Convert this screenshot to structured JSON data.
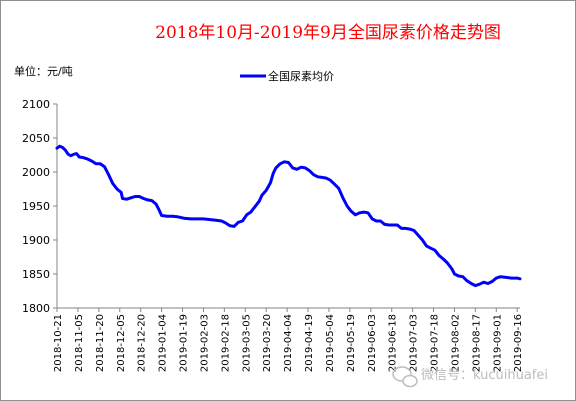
{
  "chart_data": {
    "type": "line",
    "title": "2018年10月-2019年9月全国尿素价格走势图",
    "unit_label": "单位：元/吨",
    "ylim": [
      1800,
      2100
    ],
    "yticks": [
      1800,
      1850,
      1900,
      1950,
      2000,
      2050,
      2100
    ],
    "grid": false,
    "legend_position": "top-center",
    "x_tick_labels": [
      "2018-10-21",
      "2018-11-05",
      "2018-11-20",
      "2018-12-05",
      "2018-12-20",
      "2019-01-04",
      "2019-01-19",
      "2019-02-03",
      "2019-02-18",
      "2019-03-05",
      "2019-03-20",
      "2019-04-04",
      "2019-04-19",
      "2019-05-04",
      "2019-05-19",
      "2019-06-03",
      "2019-06-18",
      "2019-07-03",
      "2019-07-18",
      "2019-08-02",
      "2019-08-17",
      "2019-09-01",
      "2019-09-16"
    ],
    "x_range": [
      "2018-10-21",
      "2019-09-18"
    ],
    "series": [
      {
        "name": "全国尿素均价",
        "color": "#0000ff",
        "points": [
          [
            "2018-10-21",
            2035
          ],
          [
            "2018-10-23",
            2038
          ],
          [
            "2018-10-25",
            2036
          ],
          [
            "2018-10-27",
            2032
          ],
          [
            "2018-10-29",
            2026
          ],
          [
            "2018-10-31",
            2024
          ],
          [
            "2018-11-02",
            2026
          ],
          [
            "2018-11-04",
            2027
          ],
          [
            "2018-11-06",
            2022
          ],
          [
            "2018-11-09",
            2021
          ],
          [
            "2018-11-12",
            2019
          ],
          [
            "2018-11-15",
            2016
          ],
          [
            "2018-11-18",
            2012
          ],
          [
            "2018-11-21",
            2012
          ],
          [
            "2018-11-24",
            2008
          ],
          [
            "2018-11-27",
            1996
          ],
          [
            "2018-11-30",
            1983
          ],
          [
            "2018-12-03",
            1975
          ],
          [
            "2018-12-06",
            1970
          ],
          [
            "2018-12-07",
            1961
          ],
          [
            "2018-12-10",
            1960
          ],
          [
            "2018-12-13",
            1962
          ],
          [
            "2018-12-16",
            1964
          ],
          [
            "2018-12-19",
            1964
          ],
          [
            "2018-12-22",
            1961
          ],
          [
            "2018-12-25",
            1959
          ],
          [
            "2018-12-28",
            1958
          ],
          [
            "2018-12-31",
            1953
          ],
          [
            "2019-01-02",
            1945
          ],
          [
            "2019-01-04",
            1936
          ],
          [
            "2019-01-08",
            1935
          ],
          [
            "2019-01-12",
            1935
          ],
          [
            "2019-01-16",
            1934
          ],
          [
            "2019-01-20",
            1932
          ],
          [
            "2019-01-25",
            1931
          ],
          [
            "2019-01-30",
            1931
          ],
          [
            "2019-02-03",
            1931
          ],
          [
            "2019-02-08",
            1930
          ],
          [
            "2019-02-12",
            1929
          ],
          [
            "2019-02-16",
            1928
          ],
          [
            "2019-02-19",
            1925
          ],
          [
            "2019-02-22",
            1921
          ],
          [
            "2019-02-25",
            1920
          ],
          [
            "2019-02-28",
            1926
          ],
          [
            "2019-03-03",
            1928
          ],
          [
            "2019-03-06",
            1937
          ],
          [
            "2019-03-09",
            1941
          ],
          [
            "2019-03-12",
            1949
          ],
          [
            "2019-03-15",
            1957
          ],
          [
            "2019-03-17",
            1966
          ],
          [
            "2019-03-20",
            1973
          ],
          [
            "2019-03-23",
            1984
          ],
          [
            "2019-03-25",
            1998
          ],
          [
            "2019-03-27",
            2006
          ],
          [
            "2019-03-30",
            2012
          ],
          [
            "2019-04-02",
            2015
          ],
          [
            "2019-04-05",
            2014
          ],
          [
            "2019-04-08",
            2006
          ],
          [
            "2019-04-11",
            2004
          ],
          [
            "2019-04-14",
            2007
          ],
          [
            "2019-04-17",
            2006
          ],
          [
            "2019-04-20",
            2002
          ],
          [
            "2019-04-23",
            1996
          ],
          [
            "2019-04-26",
            1993
          ],
          [
            "2019-04-29",
            1992
          ],
          [
            "2019-05-02",
            1991
          ],
          [
            "2019-05-05",
            1988
          ],
          [
            "2019-05-08",
            1982
          ],
          [
            "2019-05-11",
            1976
          ],
          [
            "2019-05-14",
            1962
          ],
          [
            "2019-05-17",
            1950
          ],
          [
            "2019-05-20",
            1942
          ],
          [
            "2019-05-23",
            1937
          ],
          [
            "2019-05-26",
            1940
          ],
          [
            "2019-05-29",
            1941
          ],
          [
            "2019-06-01",
            1940
          ],
          [
            "2019-06-04",
            1931
          ],
          [
            "2019-06-07",
            1928
          ],
          [
            "2019-06-10",
            1928
          ],
          [
            "2019-06-13",
            1923
          ],
          [
            "2019-06-16",
            1922
          ],
          [
            "2019-06-19",
            1922
          ],
          [
            "2019-06-22",
            1922
          ],
          [
            "2019-06-25",
            1917
          ],
          [
            "2019-06-28",
            1917
          ],
          [
            "2019-07-01",
            1916
          ],
          [
            "2019-07-04",
            1914
          ],
          [
            "2019-07-07",
            1907
          ],
          [
            "2019-07-10",
            1900
          ],
          [
            "2019-07-13",
            1891
          ],
          [
            "2019-07-16",
            1888
          ],
          [
            "2019-07-19",
            1885
          ],
          [
            "2019-07-22",
            1877
          ],
          [
            "2019-07-25",
            1872
          ],
          [
            "2019-07-28",
            1866
          ],
          [
            "2019-07-31",
            1858
          ],
          [
            "2019-08-02",
            1850
          ],
          [
            "2019-08-05",
            1847
          ],
          [
            "2019-08-08",
            1846
          ],
          [
            "2019-08-11",
            1840
          ],
          [
            "2019-08-14",
            1836
          ],
          [
            "2019-08-17",
            1833
          ],
          [
            "2019-08-20",
            1835
          ],
          [
            "2019-08-23",
            1838
          ],
          [
            "2019-08-26",
            1836
          ],
          [
            "2019-08-29",
            1839
          ],
          [
            "2019-09-01",
            1844
          ],
          [
            "2019-09-04",
            1846
          ],
          [
            "2019-09-08",
            1845
          ],
          [
            "2019-09-12",
            1844
          ],
          [
            "2019-09-16",
            1844
          ],
          [
            "2019-09-18",
            1843
          ]
        ]
      }
    ]
  },
  "watermark": {
    "text": "微信号：kucuihuafei",
    "icon": "wechat-icon"
  }
}
